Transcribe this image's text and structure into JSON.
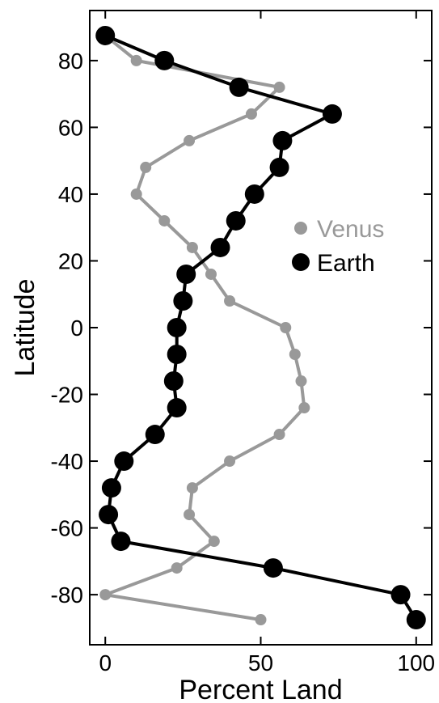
{
  "chart_data": {
    "type": "line",
    "xlabel": "Percent Land",
    "ylabel": "Latitude",
    "xlim": [
      -5,
      105
    ],
    "ylim": [
      -95,
      95
    ],
    "xticks": [
      0,
      50,
      100
    ],
    "yticks": [
      -80,
      -60,
      -40,
      -20,
      0,
      20,
      40,
      60,
      80
    ],
    "grid": false,
    "legend": "right-middle",
    "series": [
      {
        "name": "Venus",
        "color": "#999999",
        "points": [
          [
            0,
            87.5
          ],
          [
            10,
            80
          ],
          [
            56,
            72
          ],
          [
            47,
            64
          ],
          [
            27,
            56
          ],
          [
            13,
            48
          ],
          [
            10,
            40
          ],
          [
            19,
            32
          ],
          [
            28,
            24
          ],
          [
            34,
            16
          ],
          [
            40,
            8
          ],
          [
            58,
            0
          ],
          [
            61,
            -8
          ],
          [
            63,
            -16
          ],
          [
            64,
            -24
          ],
          [
            56,
            -32
          ],
          [
            40,
            -40
          ],
          [
            28,
            -48
          ],
          [
            27,
            -56
          ],
          [
            35,
            -64
          ],
          [
            23,
            -72
          ],
          [
            0,
            -80
          ],
          [
            50,
            -87.5
          ]
        ]
      },
      {
        "name": "Earth",
        "color": "#000000",
        "points": [
          [
            0,
            87.5
          ],
          [
            19,
            80
          ],
          [
            43,
            72
          ],
          [
            73,
            64
          ],
          [
            57,
            56
          ],
          [
            56,
            48
          ],
          [
            48,
            40
          ],
          [
            42,
            32
          ],
          [
            37,
            24
          ],
          [
            26,
            16
          ],
          [
            25,
            8
          ],
          [
            23,
            0
          ],
          [
            23,
            -8
          ],
          [
            22,
            -16
          ],
          [
            23,
            -24
          ],
          [
            16,
            -32
          ],
          [
            6,
            -40
          ],
          [
            2,
            -48
          ],
          [
            1,
            -56
          ],
          [
            5,
            -64
          ],
          [
            54,
            -72
          ],
          [
            95,
            -80
          ],
          [
            100,
            -87.5
          ]
        ]
      }
    ]
  }
}
